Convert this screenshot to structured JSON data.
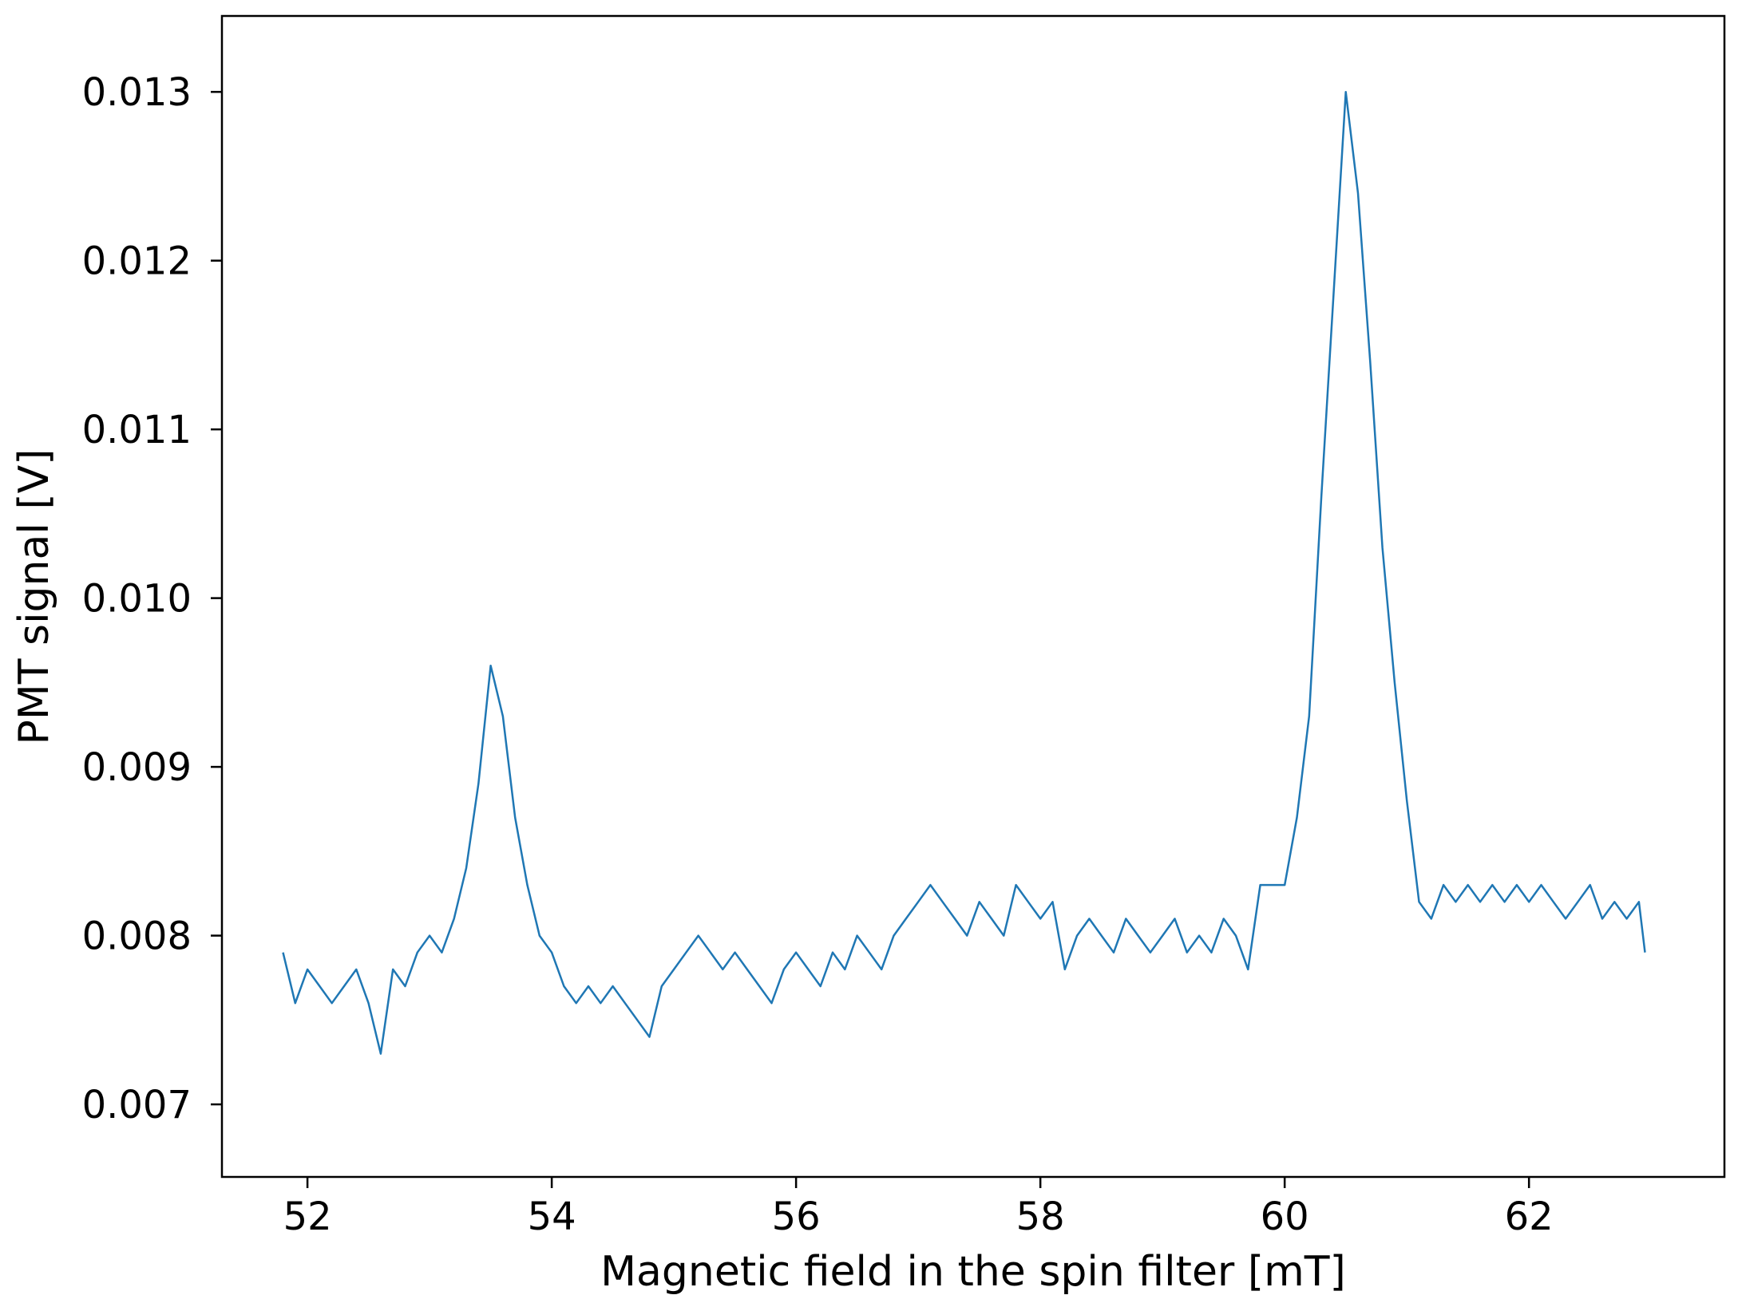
{
  "chart_data": {
    "type": "line",
    "title": "",
    "xlabel": "Magnetic field in the spin filter [mT]",
    "ylabel": "PMT signal [V]",
    "xlim": [
      51.3,
      63.6
    ],
    "ylim": [
      0.00657,
      0.01345
    ],
    "xticks": [
      52,
      54,
      56,
      58,
      60,
      62
    ],
    "xtick_labels": [
      "52",
      "54",
      "56",
      "58",
      "60",
      "62"
    ],
    "yticks": [
      0.007,
      0.008,
      0.009,
      0.01,
      0.011,
      0.012,
      0.013
    ],
    "ytick_labels": [
      "0.007",
      "0.008",
      "0.009",
      "0.010",
      "0.011",
      "0.012",
      "0.013"
    ],
    "grid": false,
    "legend": "none",
    "colors": {
      "line": "#1f77b4",
      "axes": "#000000",
      "background": "#ffffff"
    },
    "series": [
      {
        "x": [
          51.8,
          51.9,
          52.0,
          52.1,
          52.2,
          52.3,
          52.4,
          52.5,
          52.6,
          52.7,
          52.8,
          52.9,
          53.0,
          53.1,
          53.2,
          53.3,
          53.4,
          53.5,
          53.6,
          53.7,
          53.8,
          53.9,
          54.0,
          54.1,
          54.2,
          54.3,
          54.4,
          54.5,
          54.6,
          54.7,
          54.8,
          54.9,
          55.0,
          55.1,
          55.2,
          55.3,
          55.4,
          55.5,
          55.6,
          55.7,
          55.8,
          55.9,
          56.0,
          56.1,
          56.2,
          56.3,
          56.4,
          56.5,
          56.6,
          56.7,
          56.8,
          56.9,
          57.0,
          57.1,
          57.2,
          57.3,
          57.4,
          57.5,
          57.6,
          57.7,
          57.8,
          57.9,
          58.0,
          58.1,
          58.2,
          58.3,
          58.4,
          58.5,
          58.6,
          58.7,
          58.8,
          58.9,
          59.0,
          59.1,
          59.2,
          59.3,
          59.4,
          59.5,
          59.6,
          59.7,
          59.8,
          59.9,
          60.0,
          60.1,
          60.2,
          60.3,
          60.4,
          60.5,
          60.6,
          60.7,
          60.8,
          60.9,
          61.0,
          61.1,
          61.2,
          61.3,
          61.4,
          61.5,
          61.6,
          61.7,
          61.8,
          61.9,
          62.0,
          62.1,
          62.2,
          62.3,
          62.4,
          62.5,
          62.6,
          62.7,
          62.8,
          62.9,
          62.95
        ],
        "values": [
          0.0079,
          0.0076,
          0.0078,
          0.0077,
          0.0076,
          0.0077,
          0.0078,
          0.0076,
          0.0073,
          0.0078,
          0.0077,
          0.0079,
          0.008,
          0.0079,
          0.0081,
          0.0084,
          0.0089,
          0.0096,
          0.0093,
          0.0087,
          0.0083,
          0.008,
          0.0079,
          0.0077,
          0.0076,
          0.0077,
          0.0076,
          0.0077,
          0.0076,
          0.0075,
          0.0074,
          0.0077,
          0.0078,
          0.0079,
          0.008,
          0.0079,
          0.0078,
          0.0079,
          0.0078,
          0.0077,
          0.0076,
          0.0078,
          0.0079,
          0.0078,
          0.0077,
          0.0079,
          0.0078,
          0.008,
          0.0079,
          0.0078,
          0.008,
          0.0081,
          0.0082,
          0.0083,
          0.0082,
          0.0081,
          0.008,
          0.0082,
          0.0081,
          0.008,
          0.0083,
          0.0082,
          0.0081,
          0.0082,
          0.0078,
          0.008,
          0.0081,
          0.008,
          0.0079,
          0.0081,
          0.008,
          0.0079,
          0.008,
          0.0081,
          0.0079,
          0.008,
          0.0079,
          0.0081,
          0.008,
          0.0078,
          0.0083,
          0.0083,
          0.0083,
          0.0087,
          0.0093,
          0.0106,
          0.0118,
          0.013,
          0.0124,
          0.0114,
          0.0103,
          0.0095,
          0.0088,
          0.0082,
          0.0081,
          0.0083,
          0.0082,
          0.0083,
          0.0082,
          0.0083,
          0.0082,
          0.0083,
          0.0082,
          0.0083,
          0.0082,
          0.0081,
          0.0082,
          0.0083,
          0.0081,
          0.0082,
          0.0081,
          0.0082,
          0.0079
        ]
      }
    ]
  }
}
